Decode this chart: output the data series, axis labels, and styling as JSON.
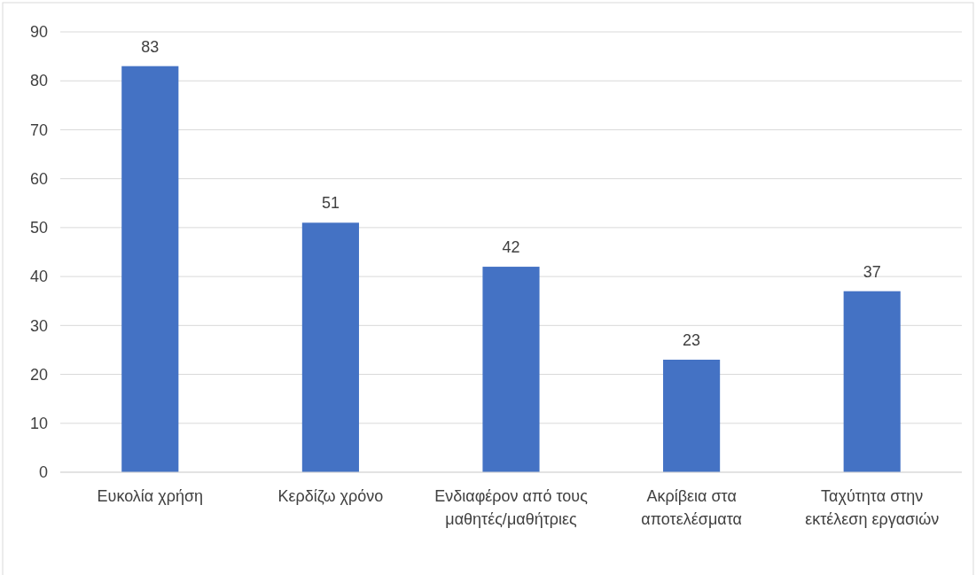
{
  "chart_data": {
    "type": "bar",
    "categories": [
      "Ευκολία χρήση",
      "Κερδίζω χρόνο",
      "Ενδιαφέρον από τους μαθητές/μαθήτριες",
      "Ακρίβεια στα αποτελέσματα",
      "Ταχύτητα στην εκτέλεση εργασιών"
    ],
    "values": [
      83,
      51,
      42,
      23,
      37
    ],
    "color": "#4472c4",
    "ylim": [
      0,
      90
    ],
    "yticks": [
      0,
      10,
      20,
      30,
      40,
      50,
      60,
      70,
      80,
      90
    ],
    "grid": "y",
    "data_labels": true
  }
}
